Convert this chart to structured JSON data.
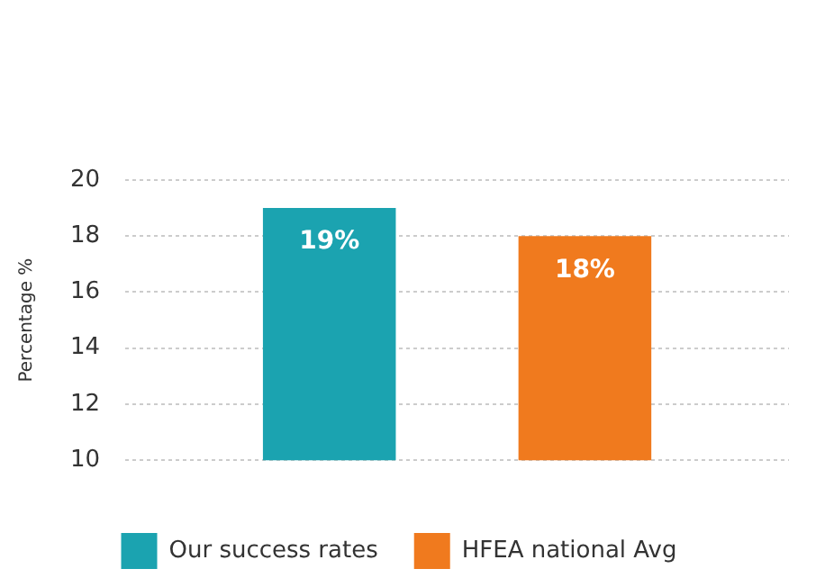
{
  "chart_data": {
    "type": "bar",
    "ylabel": "Percentage %",
    "categories": [
      null
    ],
    "series": [
      {
        "name": "Our success rates",
        "color": "#1ba3b0",
        "values": [
          19
        ],
        "value_labels": [
          "19%"
        ]
      },
      {
        "name": "HFEA national Avg",
        "color": "#f07a1e",
        "values": [
          18
        ],
        "value_labels": [
          "18%"
        ]
      }
    ],
    "ylim": [
      10,
      20
    ],
    "yticks": [
      10,
      12,
      14,
      16,
      18,
      20
    ],
    "grid": "y",
    "legend": "bottom"
  }
}
